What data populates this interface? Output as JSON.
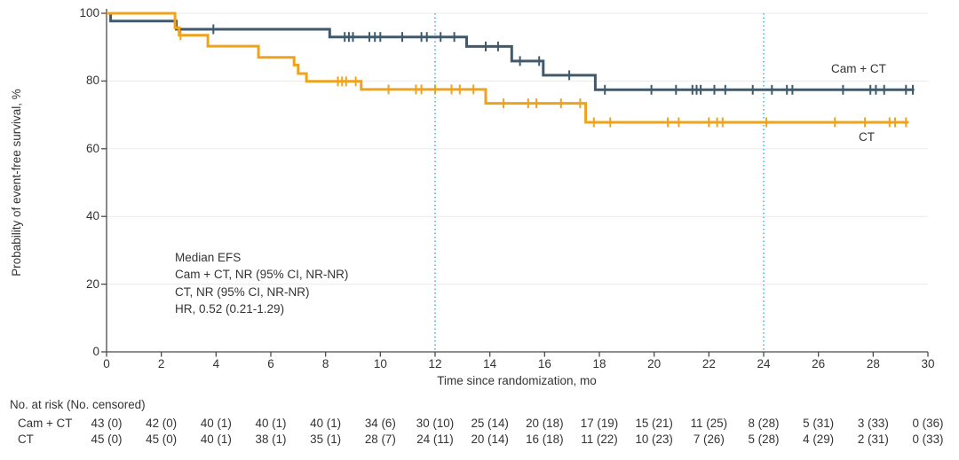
{
  "chart_data": {
    "type": "line",
    "subtype": "kaplan-meier-step",
    "title": "",
    "xlabel": "Time since randomization, mo",
    "ylabel": "Probability of event-free survival, %",
    "xlim": [
      0,
      30
    ],
    "ylim": [
      0,
      100
    ],
    "xticks": [
      0,
      2,
      4,
      6,
      8,
      10,
      12,
      14,
      16,
      18,
      20,
      22,
      24,
      26,
      28,
      30
    ],
    "yticks": [
      0,
      20,
      40,
      60,
      80,
      100
    ],
    "grid": "horizontal-light",
    "reference_lines_x": [
      12,
      24
    ],
    "colors": {
      "axis": "#4a4a4a",
      "grid": "#eaeaea",
      "reference_line": "#3cb4e6",
      "text": "#333333"
    },
    "annotation": [
      "Median EFS",
      "Cam + CT, NR (95% CI, NR-NR)",
      "CT, NR (95% CI, NR-NR)",
      "HR, 0.52 (0.21-1.29)"
    ],
    "series": [
      {
        "name": "Cam + CT",
        "color": "#415a6b",
        "steps": [
          [
            0,
            100
          ],
          [
            0.15,
            97.7
          ],
          [
            2.55,
            95.3
          ],
          [
            8.15,
            93.0
          ],
          [
            13.15,
            90.2
          ],
          [
            14.8,
            85.9
          ],
          [
            15.95,
            81.7
          ],
          [
            17.85,
            77.4
          ]
        ],
        "end": 29.5,
        "censors": [
          3.9,
          8.7,
          8.85,
          9.0,
          9.6,
          9.8,
          10.0,
          10.8,
          11.5,
          11.7,
          12.2,
          12.7,
          13.85,
          14.3,
          15.1,
          15.8,
          16.9,
          18.2,
          19.9,
          20.8,
          21.4,
          21.55,
          21.7,
          22.2,
          22.6,
          23.6,
          24.3,
          24.85,
          25.05,
          26.9,
          27.9,
          28.1,
          28.4,
          29.2,
          29.45
        ]
      },
      {
        "name": "CT",
        "color": "#efa31d",
        "steps": [
          [
            0,
            100
          ],
          [
            2.5,
            95.7
          ],
          [
            2.65,
            93.5
          ],
          [
            3.7,
            90.3
          ],
          [
            5.55,
            87.0
          ],
          [
            6.85,
            84.7
          ],
          [
            7.0,
            82.2
          ],
          [
            7.3,
            79.9
          ],
          [
            9.3,
            77.5
          ],
          [
            13.85,
            73.4
          ],
          [
            17.5,
            67.8
          ]
        ],
        "end": 29.3,
        "censors": [
          2.7,
          8.45,
          8.6,
          8.75,
          9.1,
          10.3,
          11.3,
          11.5,
          12.0,
          12.6,
          12.9,
          13.4,
          14.5,
          15.4,
          15.7,
          16.6,
          17.3,
          17.8,
          18.4,
          20.5,
          20.9,
          22.0,
          22.3,
          22.5,
          24.1,
          26.6,
          27.7,
          28.6,
          28.8,
          29.2
        ]
      }
    ]
  },
  "risk_table": {
    "header": "No. at risk (No. censored)",
    "rows": [
      {
        "label": "Cam + CT",
        "values": [
          "43 (0)",
          "42 (0)",
          "40 (1)",
          "40 (1)",
          "40 (1)",
          "34 (6)",
          "30 (10)",
          "25 (14)",
          "20 (18)",
          "17 (19)",
          "15 (21)",
          "11 (25)",
          "8 (28)",
          "5 (31)",
          "3 (33)",
          "0 (36)"
        ]
      },
      {
        "label": "CT",
        "values": [
          "45 (0)",
          "45 (0)",
          "40 (1)",
          "38 (1)",
          "35 (1)",
          "28 (7)",
          "24 (11)",
          "20 (14)",
          "16 (18)",
          "11 (22)",
          "10 (23)",
          "7 (26)",
          "5 (28)",
          "4 (29)",
          "2 (31)",
          "0 (33)"
        ]
      }
    ]
  }
}
